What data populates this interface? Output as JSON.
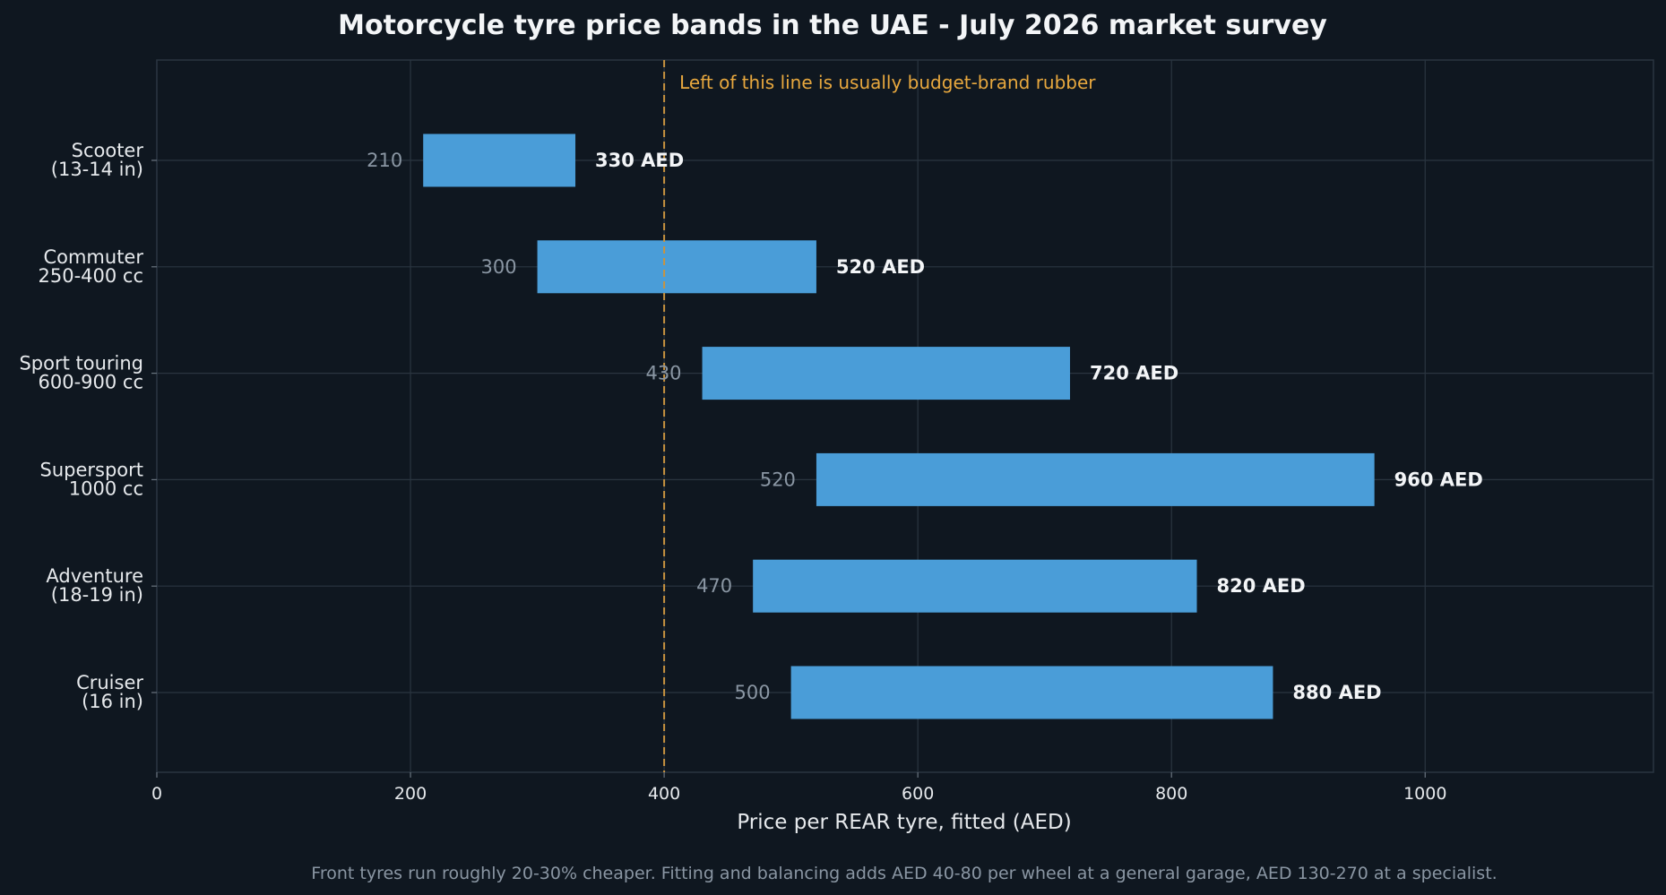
{
  "chart_data": {
    "type": "bar",
    "orientation": "horizontal-range",
    "title": "Motorcycle tyre price bands in the UAE - July 2026 market survey",
    "xlabel": "Price per REAR tyre, fitted (AED)",
    "ylabel": "",
    "xlim": [
      0,
      1180
    ],
    "xticks": [
      0,
      200,
      400,
      600,
      800,
      1000
    ],
    "grid": true,
    "categories": [
      "Scooter\n(13-14 in)",
      "Commuter\n250-400 cc",
      "Sport touring\n600-900 cc",
      "Supersport\n1000 cc",
      "Adventure\n(18-19 in)",
      "Cruiser\n(16 in)"
    ],
    "ranges": [
      {
        "low": 210,
        "high": 330,
        "low_label": "210",
        "high_label": "330 AED"
      },
      {
        "low": 300,
        "high": 520,
        "low_label": "300",
        "high_label": "520 AED"
      },
      {
        "low": 430,
        "high": 720,
        "low_label": "430",
        "high_label": "720 AED"
      },
      {
        "low": 520,
        "high": 960,
        "low_label": "520",
        "high_label": "960 AED"
      },
      {
        "low": 470,
        "high": 820,
        "low_label": "470",
        "high_label": "820 AED"
      },
      {
        "low": 500,
        "high": 880,
        "low_label": "500",
        "high_label": "880 AED"
      }
    ],
    "reference_line": {
      "x": 400,
      "label": "Left of this line is usually budget-brand rubber"
    },
    "footnote": "Front tyres run roughly 20-30% cheaper. Fitting and balancing adds AED 40-80 per wheel at a general garage, AED 130-270 at a specialist.",
    "colors": {
      "background": "#0f1720",
      "bar": "#4a9dd8",
      "reference_line": "#c8933f",
      "annotation": "#e8a83e",
      "grid": "#2a3540",
      "text": "#e6e9ec",
      "muted_text": "#8a96a3"
    }
  }
}
